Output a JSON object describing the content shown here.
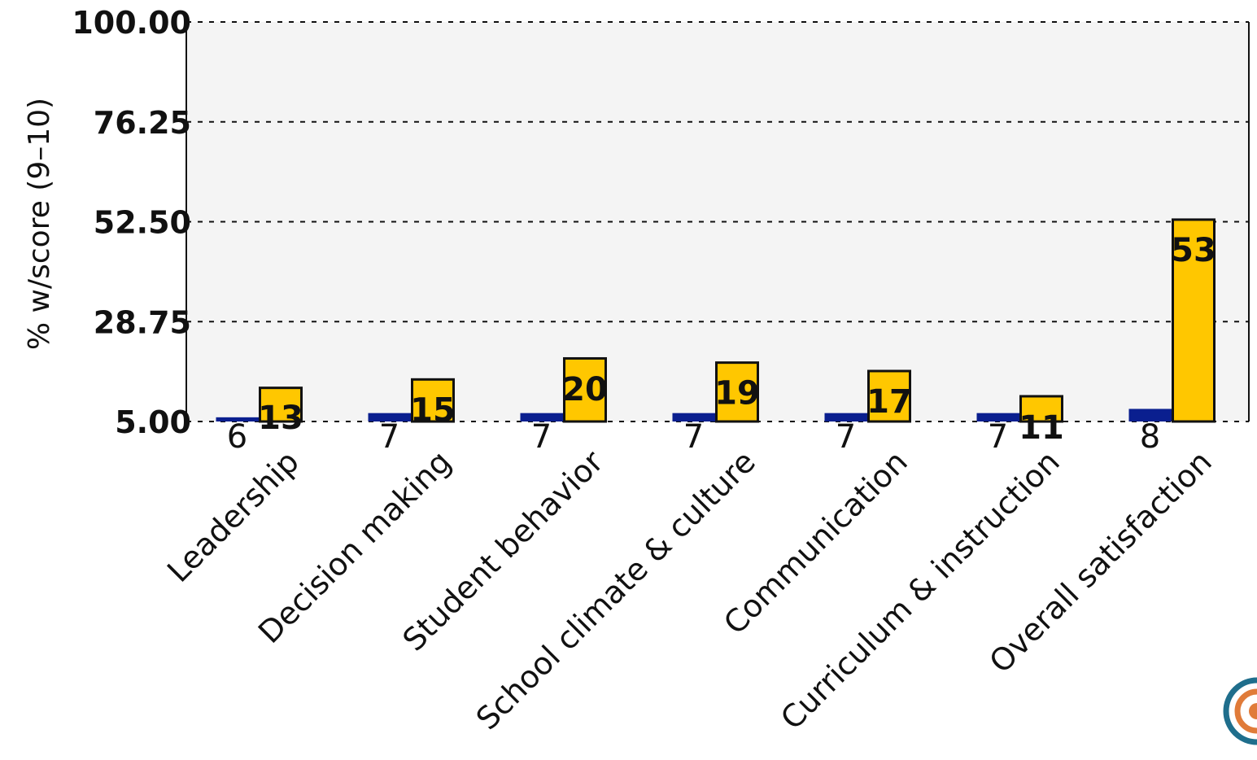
{
  "chart_data": {
    "type": "bar",
    "title": "",
    "xlabel": "",
    "ylabel": "% w/score (9–10)",
    "ylim": [
      5,
      100
    ],
    "yticks": [
      "100.00",
      "76.25",
      "52.50",
      "28.75",
      "5.00"
    ],
    "ytick_values": [
      100,
      76.25,
      52.5,
      28.75,
      5
    ],
    "grid": true,
    "categories": [
      "Leadership",
      "Decision making",
      "Student behavior",
      "School climate & culture",
      "Communication",
      "Curriculum & instruction",
      "Overall satisfaction"
    ],
    "series": [
      {
        "color": "#0a1f8f",
        "values": [
          6,
          7,
          7,
          7,
          7,
          7,
          8
        ],
        "labels": [
          "6",
          "7",
          "7",
          "7",
          "7",
          "7",
          "8"
        ]
      },
      {
        "color": "#ffc700",
        "values": [
          13,
          15,
          20,
          19,
          17,
          11,
          53
        ],
        "labels": [
          "13",
          "15",
          "20",
          "19",
          "17",
          "11",
          "53"
        ]
      }
    ],
    "plot_background": "#f4f4f4",
    "logo_colors": [
      "#1f6e8c",
      "#e07b39"
    ]
  }
}
